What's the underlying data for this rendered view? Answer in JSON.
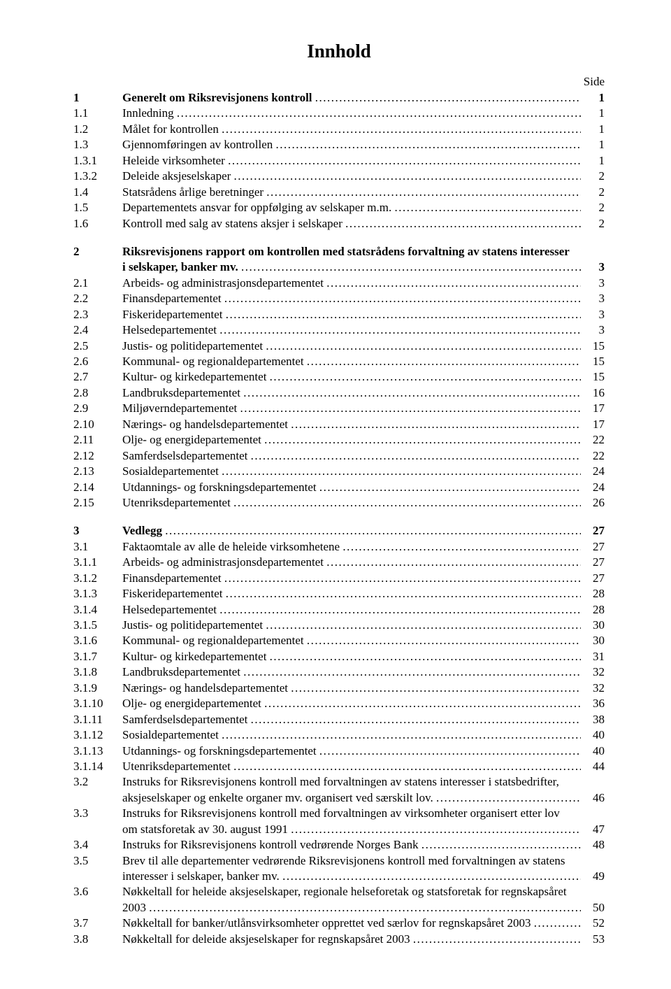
{
  "title": "Innhold",
  "side_label": "Side",
  "col_width_num": 70,
  "col_width_page": 34,
  "font_size": 17,
  "groups": [
    {
      "entries": [
        {
          "num": "1",
          "text": "Generelt om Riksrevisjonens kontroll",
          "page": "1",
          "bold": true
        },
        {
          "num": "1.1",
          "text": "Innledning",
          "page": "1"
        },
        {
          "num": "1.2",
          "text": "Målet for kontrollen",
          "page": "1"
        },
        {
          "num": "1.3",
          "text": "Gjennomføringen av kontrollen",
          "page": "1"
        },
        {
          "num": "1.3.1",
          "text": "Heleide virksomheter",
          "page": "1"
        },
        {
          "num": "1.3.2",
          "text": "Deleide aksjeselskaper",
          "page": "2"
        },
        {
          "num": "1.4",
          "text": "Statsrådens årlige beretninger",
          "page": "2"
        },
        {
          "num": "1.5",
          "text": "Departementets ansvar for oppfølging av selskaper m.m.",
          "page": "2"
        },
        {
          "num": "1.6",
          "text": "Kontroll med salg av statens aksjer i selskaper",
          "page": "2"
        }
      ]
    },
    {
      "entries": [
        {
          "num": "2",
          "text_lines": [
            "Riksrevisjonens rapport om kontrollen med statsrådens forvaltning av statens interesser",
            "i selskaper, banker mv."
          ],
          "page": "3",
          "bold": true
        },
        {
          "num": "2.1",
          "text": "Arbeids- og administrasjonsdepartementet",
          "page": "3"
        },
        {
          "num": "2.2",
          "text": "Finansdepartementet",
          "page": "3"
        },
        {
          "num": "2.3",
          "text": "Fiskeridepartementet",
          "page": "3"
        },
        {
          "num": "2.4",
          "text": "Helsedepartementet",
          "page": "3"
        },
        {
          "num": "2.5",
          "text": "Justis- og politidepartementet",
          "page": "15"
        },
        {
          "num": "2.6",
          "text": "Kommunal- og regionaldepartementet",
          "page": "15"
        },
        {
          "num": "2.7",
          "text": "Kultur- og kirkedepartementet",
          "page": "15"
        },
        {
          "num": "2.8",
          "text": "Landbruksdepartementet",
          "page": "16"
        },
        {
          "num": "2.9",
          "text": "Miljøverndepartementet",
          "page": "17"
        },
        {
          "num": "2.10",
          "text": "Nærings- og handelsdepartementet",
          "page": "17"
        },
        {
          "num": "2.11",
          "text": "Olje- og energidepartementet",
          "page": "22"
        },
        {
          "num": "2.12",
          "text": "Samferdselsdepartementet",
          "page": "22"
        },
        {
          "num": "2.13",
          "text": "Sosialdepartementet",
          "page": "24"
        },
        {
          "num": "2.14",
          "text": "Utdannings- og forskningsdepartementet",
          "page": "24"
        },
        {
          "num": "2.15",
          "text": "Utenriksdepartementet",
          "page": "26"
        }
      ]
    },
    {
      "entries": [
        {
          "num": "3",
          "text": "Vedlegg",
          "page": "27",
          "bold": true
        },
        {
          "num": "3.1",
          "text": "Faktaomtale av alle de heleide virksomhetene",
          "page": "27"
        },
        {
          "num": "3.1.1",
          "text": "Arbeids- og administrasjonsdepartementet",
          "page": "27"
        },
        {
          "num": "3.1.2",
          "text": "Finansdepartementet",
          "page": "27"
        },
        {
          "num": "3.1.3",
          "text": "Fiskeridepartementet",
          "page": "28"
        },
        {
          "num": "3.1.4",
          "text": "Helsedepartementet",
          "page": "28"
        },
        {
          "num": "3.1.5",
          "text": "Justis- og politidepartementet",
          "page": "30"
        },
        {
          "num": "3.1.6",
          "text": "Kommunal- og regionaldepartementet",
          "page": "30"
        },
        {
          "num": "3.1.7",
          "text": "Kultur- og kirkedepartementet",
          "page": "31"
        },
        {
          "num": "3.1.8",
          "text": "Landbruksdepartementet",
          "page": "32"
        },
        {
          "num": "3.1.9",
          "text": "Nærings- og handelsdepartementet",
          "page": "32"
        },
        {
          "num": "3.1.10",
          "text": "Olje- og energidepartementet",
          "page": "36"
        },
        {
          "num": "3.1.11",
          "text": "Samferdselsdepartementet",
          "page": "38"
        },
        {
          "num": "3.1.12",
          "text": "Sosialdepartementet",
          "page": "40"
        },
        {
          "num": "3.1.13",
          "text": "Utdannings- og forskningsdepartementet",
          "page": "40"
        },
        {
          "num": "3.1.14",
          "text": "Utenriksdepartementet",
          "page": "44"
        },
        {
          "num": "3.2",
          "text_lines": [
            "Instruks for Riksrevisjonens kontroll med forvaltningen av statens interesser i statsbedrifter,",
            "aksjeselskaper og enkelte organer mv. organisert ved særskilt lov."
          ],
          "page": "46"
        },
        {
          "num": "3.3",
          "text_lines": [
            "Instruks for Riksrevisjonens kontroll med forvaltningen av virksomheter organisert etter lov",
            "om statsforetak av 30. august 1991"
          ],
          "page": "47"
        },
        {
          "num": "3.4",
          "text": "Instruks for Riksrevisjonens kontroll vedrørende Norges Bank",
          "page": "48"
        },
        {
          "num": "3.5",
          "text_lines": [
            "Brev til alle departementer vedrørende Riksrevisjonens kontroll med forvaltningen av statens",
            "interesser i selskaper, banker mv."
          ],
          "page": "49"
        },
        {
          "num": "3.6",
          "text_lines": [
            "Nøkkeltall for heleide aksjeselskaper, regionale helseforetak og statsforetak for regnskapsåret",
            "2003"
          ],
          "page": "50"
        },
        {
          "num": "3.7",
          "text": "Nøkkeltall for banker/utlånsvirksomheter opprettet ved særlov for regnskapsåret 2003",
          "page": "52"
        },
        {
          "num": "3.8",
          "text": "Nøkkeltall for deleide aksjeselskaper for regnskapsåret 2003",
          "page": "53"
        }
      ]
    }
  ]
}
